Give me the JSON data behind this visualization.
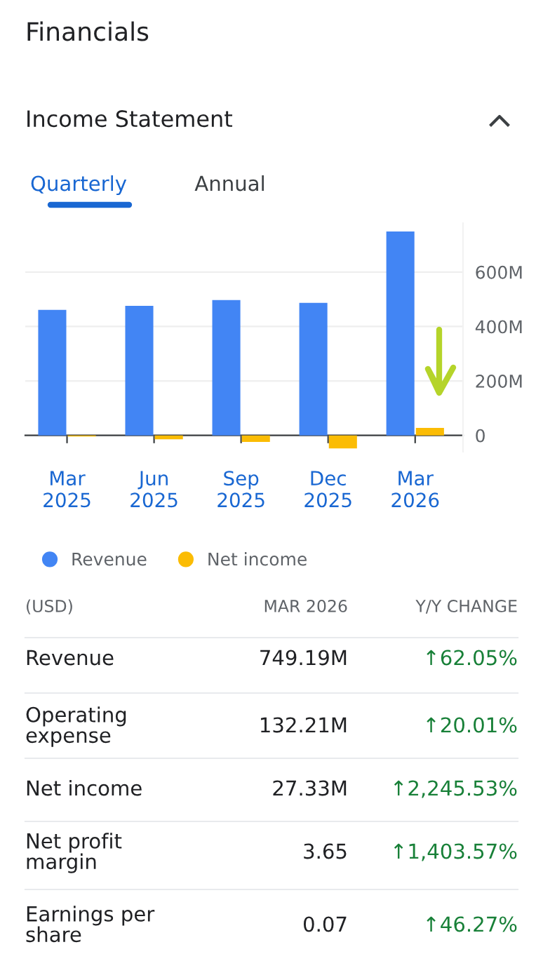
{
  "chart_data": {
    "type": "bar",
    "title": "Financials",
    "subtitle": "Income Statement",
    "categories": [
      "Mar\n2025",
      "Jun\n2025",
      "Sep\n2025",
      "Dec\n2025",
      "Mar\n2026"
    ],
    "series": [
      {
        "name": "Revenue",
        "color": "#4285f4",
        "values": [
          461,
          476,
          497,
          487,
          749.19
        ]
      },
      {
        "name": "Net income",
        "color": "#fbbc04",
        "values": [
          -4,
          -14,
          -24,
          -48,
          27.33
        ]
      }
    ],
    "ylim": [
      -60,
      780
    ],
    "yticks": [
      {
        "value": 0,
        "label": "0"
      },
      {
        "value": 200,
        "label": "200M"
      },
      {
        "value": 400,
        "label": "400M"
      },
      {
        "value": 600,
        "label": "600M"
      }
    ],
    "grid": "y",
    "legend": "bottom",
    "annotations": [
      "Quarterly",
      "Annual",
      "(USD)",
      "MAR 2026",
      "Y/Y CHANGE",
      "Revenue",
      "749.19M",
      "↑62.05%",
      "Operating\nexpense",
      "132.21M",
      "↑20.01%",
      "Net income",
      "27.33M",
      "↑2,245.53%",
      "Net profit\nmargin",
      "3.65",
      "↑1,403.57%",
      "Earnings per\nshare",
      "0.07",
      "↑46.27%"
    ]
  }
}
